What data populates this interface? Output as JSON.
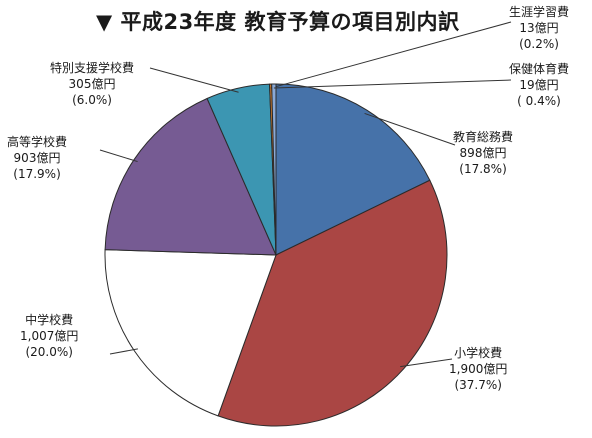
{
  "chart_data": {
    "type": "pie",
    "title": "▼ 平成23年度 教育予算の項目別内訳",
    "slices": [
      {
        "name": "教育総務費",
        "amount": "898億円",
        "percent_label": "(17.8%)",
        "value": 17.8,
        "color": "#4672a9"
      },
      {
        "name": "小学校費",
        "amount": "1,900億円",
        "percent_label": "(37.7%)",
        "value": 37.7,
        "color": "#aa4644"
      },
      {
        "name": "中学校費",
        "amount": "1,007億円",
        "percent_label": "(20.0%)",
        "value": 20.0,
        "color": "#ffffff"
      },
      {
        "name": "高等学校費",
        "amount": "903億円",
        "percent_label": "(17.9%)",
        "value": 17.9,
        "color": "#765b93"
      },
      {
        "name": "特別支援学校費",
        "amount": "305億円",
        "percent_label": "(6.0%)",
        "value": 6.0,
        "color": "#3c96b2"
      },
      {
        "name": "生涯学習費",
        "amount": "13億円",
        "percent_label": "(0.2%)",
        "value": 0.2,
        "color": "#d97f2b"
      },
      {
        "name": "保健体育費",
        "amount": "19億円",
        "percent_label": "( 0.4%)",
        "value": 0.4,
        "color": "#8aa9d6"
      }
    ]
  }
}
